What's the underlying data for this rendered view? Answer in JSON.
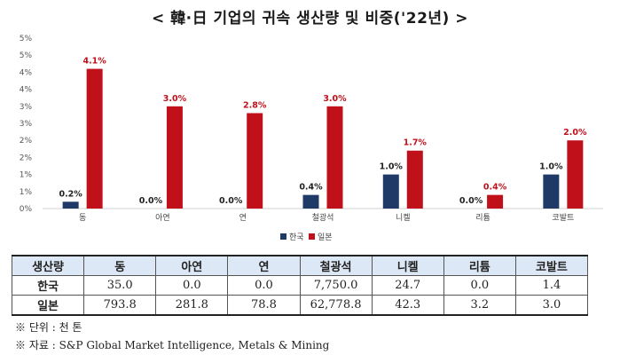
{
  "title": "< 韓·日  기업의 귀속 생산량 및 비중('22년) >",
  "chart_data": {
    "type": "bar",
    "categories": [
      "동",
      "아연",
      "연",
      "철광석",
      "니켈",
      "리튬",
      "코발트"
    ],
    "series": [
      {
        "name": "한국",
        "color": "#1f3a66",
        "values": [
          0.2,
          0.0,
          0.0,
          0.4,
          1.0,
          0.0,
          1.0
        ],
        "labels": [
          "0.2%",
          "0.0%",
          "0.0%",
          "0.4%",
          "1.0%",
          "0.0%",
          "1.0%"
        ],
        "label_color": "#222222"
      },
      {
        "name": "일본",
        "color": "#c0101a",
        "values": [
          4.1,
          3.0,
          2.8,
          3.0,
          1.7,
          0.4,
          2.0
        ],
        "labels": [
          "4.1%",
          "3.0%",
          "2.8%",
          "3.0%",
          "1.7%",
          "0.4%",
          "2.0%"
        ],
        "label_color": "#c0101a"
      }
    ],
    "ylim": [
      0,
      5
    ],
    "yticks": [
      "0%",
      "1%",
      "1%",
      "2%",
      "2%",
      "3%",
      "3%",
      "4%",
      "4%",
      "5%",
      "5%"
    ],
    "grid": false,
    "legend": "bottom"
  },
  "table": {
    "headers": [
      "생산량",
      "동",
      "아연",
      "연",
      "철광석",
      "니켈",
      "리튬",
      "코발트"
    ],
    "rows": [
      {
        "label": "한국",
        "cells": [
          "35.0",
          "0.0",
          "0.0",
          "7,750.0",
          "24.7",
          "0.0",
          "1.4"
        ]
      },
      {
        "label": "일본",
        "cells": [
          "793.8",
          "281.8",
          "78.8",
          "62,778.8",
          "42.3",
          "3.2",
          "3.0"
        ]
      }
    ]
  },
  "notes": [
    "※ 단위 : 천 톤",
    "※ 자료 : S&P Global Market Intelligence, Metals & Mining"
  ]
}
